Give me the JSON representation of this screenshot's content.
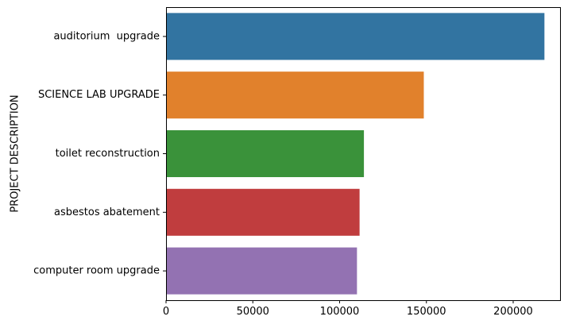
{
  "chart_data": {
    "type": "bar",
    "orientation": "horizontal",
    "categories": [
      "auditorium  upgrade",
      "SCIENCE LAB UPGRADE",
      "toilet reconstruction",
      "asbestos abatement",
      "computer room upgrade"
    ],
    "values": [
      218000,
      148500,
      114000,
      111500,
      110000
    ],
    "colors": [
      "#3274a1",
      "#e1812c",
      "#3a923a",
      "#c03d3e",
      "#9372b2"
    ],
    "title": "",
    "xlabel": "",
    "ylabel": "PROJECT DESCRIPTION",
    "xlim": [
      0,
      227000
    ],
    "xticks": [
      0,
      50000,
      100000,
      150000,
      200000
    ],
    "xtick_labels": [
      "0",
      "50000",
      "100000",
      "150000",
      "200000"
    ],
    "grid": false,
    "legend": "none"
  }
}
